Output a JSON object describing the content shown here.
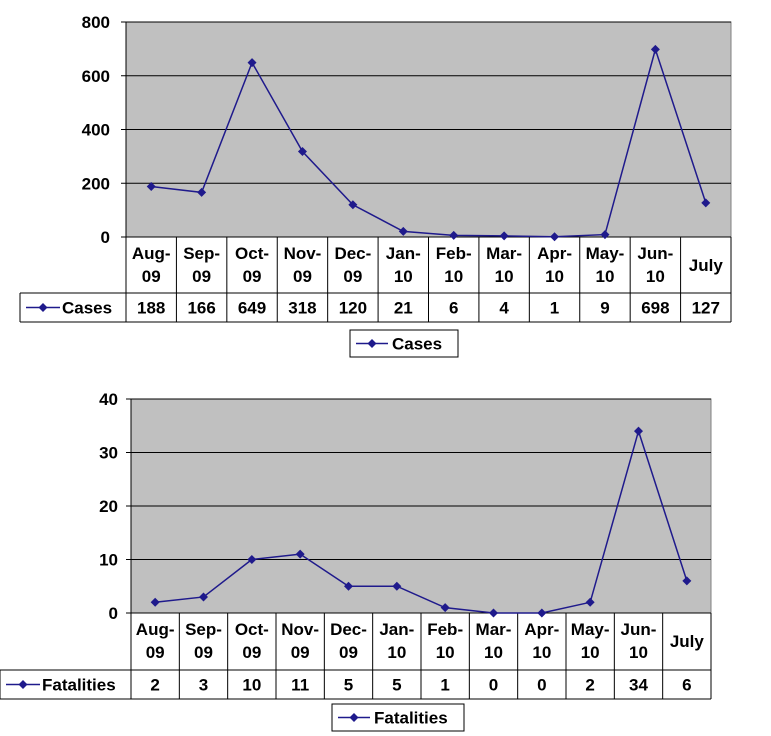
{
  "chart_data": [
    {
      "type": "line",
      "categories": [
        "Aug-09",
        "Sep-09",
        "Oct-09",
        "Nov-09",
        "Dec-09",
        "Jan-10",
        "Feb-10",
        "Mar-10",
        "Apr-10",
        "May-10",
        "Jun-10",
        "July"
      ],
      "series": [
        {
          "name": "Cases",
          "values": [
            188,
            166,
            649,
            318,
            120,
            21,
            6,
            4,
            1,
            9,
            698,
            127
          ]
        }
      ],
      "ylim": [
        0,
        800
      ],
      "yticks": [
        0,
        200,
        400,
        600,
        800
      ],
      "grid": true,
      "data_table": true,
      "legend_position": "bottom",
      "colors": {
        "plot_bg": "#c0c0c0",
        "line": "#1f1a8c",
        "grid": "#000000"
      }
    },
    {
      "type": "line",
      "categories": [
        "Aug-09",
        "Sep-09",
        "Oct-09",
        "Nov-09",
        "Dec-09",
        "Jan-10",
        "Feb-10",
        "Mar-10",
        "Apr-10",
        "May-10",
        "Jun-10",
        "July"
      ],
      "series": [
        {
          "name": "Fatalities",
          "values": [
            2,
            3,
            10,
            11,
            5,
            5,
            1,
            0,
            0,
            2,
            34,
            6
          ]
        }
      ],
      "ylim": [
        0,
        40
      ],
      "yticks": [
        0,
        10,
        20,
        30,
        40
      ],
      "grid": true,
      "data_table": true,
      "legend_position": "bottom",
      "colors": {
        "plot_bg": "#c0c0c0",
        "line": "#1f1a8c",
        "grid": "#000000"
      }
    }
  ]
}
